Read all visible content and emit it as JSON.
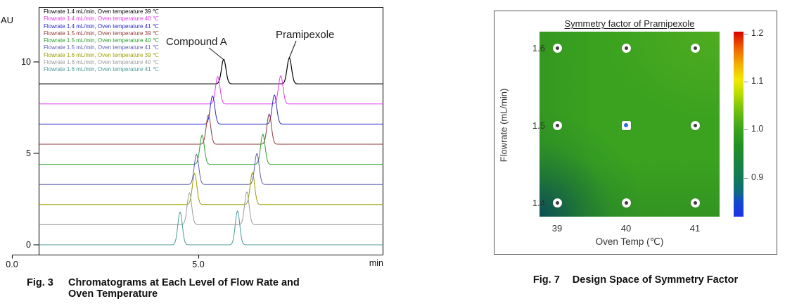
{
  "figure_left": {
    "ylabel": "AU",
    "x_unit": "min",
    "caption": {
      "tag": "Fig. 3",
      "line1": "Chromatograms at Each Level of Flow Rate and",
      "line2": "Oven Temperature"
    }
  },
  "figure_right": {
    "caption": {
      "tag": "Fig. 7",
      "text": "Design Space of Symmetry Factor"
    }
  },
  "chart_data": [
    {
      "type": "line",
      "title": "Chromatograms at Each Level of Flow Rate and Oven Temperature",
      "xlabel": "min",
      "ylabel": "AU",
      "xlim": [
        0,
        10
      ],
      "ylim": [
        -0.6,
        13
      ],
      "x_ticks": [
        {
          "label": "0.0",
          "value": 0
        },
        {
          "label": "5.0",
          "value": 5
        }
      ],
      "y_ticks": [
        {
          "label": "10",
          "value": 10
        },
        {
          "label": "5",
          "value": 5
        },
        {
          "label": "0",
          "value": 0
        }
      ],
      "peak_annotations": [
        {
          "text": "Compound A",
          "points_to": "first peak of top trace"
        },
        {
          "text": "Pramipexole",
          "points_to": "second peak of top trace"
        }
      ],
      "baseline_offset_step_au": 1.1,
      "series": [
        {
          "name": "Flowrate 1.4 mL/min, Oven temperature 39 ℃",
          "color": "#000000",
          "baseline_au": 8.8,
          "peaks": [
            {
              "rt_min": 5.68,
              "height_au": 1.35
            },
            {
              "rt_min": 7.44,
              "height_au": 1.42
            }
          ]
        },
        {
          "name": "Flowrate 1.4 mL/min, Oven temperature 40 ℃",
          "color": "#e837e8",
          "baseline_au": 7.7,
          "peaks": [
            {
              "rt_min": 5.52,
              "height_au": 1.5
            },
            {
              "rt_min": 7.21,
              "height_au": 1.55
            }
          ]
        },
        {
          "name": "Flowrate 1.4 mL/min, Oven temperature 41 ℃",
          "color": "#2828cf",
          "baseline_au": 6.6,
          "peaks": [
            {
              "rt_min": 5.38,
              "height_au": 1.55
            },
            {
              "rt_min": 7.04,
              "height_au": 1.6
            }
          ]
        },
        {
          "name": "Flowrate 1.5 mL/min, Oven temperature 39 ℃",
          "color": "#8f3838",
          "baseline_au": 5.5,
          "peaks": [
            {
              "rt_min": 5.27,
              "height_au": 1.6
            },
            {
              "rt_min": 6.9,
              "height_au": 1.65
            }
          ]
        },
        {
          "name": "Flowrate 1.5 mL/min, Oven temperature 40 ℃",
          "color": "#2ba02b",
          "baseline_au": 4.4,
          "peaks": [
            {
              "rt_min": 5.1,
              "height_au": 1.6
            },
            {
              "rt_min": 6.73,
              "height_au": 1.65
            }
          ]
        },
        {
          "name": "Flowrate 1.5 mL/min, Oven temperature 41 ℃",
          "color": "#5e5eb0",
          "baseline_au": 3.3,
          "peaks": [
            {
              "rt_min": 4.95,
              "height_au": 1.65
            },
            {
              "rt_min": 6.57,
              "height_au": 1.7
            }
          ]
        },
        {
          "name": "Flowrate 1.6 mL/min, Oven temperature 39 ℃",
          "color": "#9c9c00",
          "baseline_au": 2.2,
          "peaks": [
            {
              "rt_min": 4.9,
              "height_au": 1.7
            },
            {
              "rt_min": 6.45,
              "height_au": 1.75
            }
          ]
        },
        {
          "name": "Flowrate 1.6 mL/min, Oven temperature 40 ℃",
          "color": "#9c9c9c",
          "baseline_au": 1.1,
          "peaks": [
            {
              "rt_min": 4.76,
              "height_au": 1.75
            },
            {
              "rt_min": 6.3,
              "height_au": 1.8
            }
          ]
        },
        {
          "name": "Flowrate 1.6 mL/min, Oven temperature 41 ℃",
          "color": "#4a9a9a",
          "baseline_au": 0.0,
          "peaks": [
            {
              "rt_min": 4.51,
              "height_au": 1.8
            },
            {
              "rt_min": 6.05,
              "height_au": 1.85
            }
          ]
        }
      ]
    },
    {
      "type": "heatmap",
      "title": "Symmetry factor of Pramipexole",
      "xlabel": "Oven Temp (℃)",
      "ylabel": "Flowrate (mL/min)",
      "x_ticks": [
        {
          "label": "39",
          "value": 39
        },
        {
          "label": "40",
          "value": 40
        },
        {
          "label": "41",
          "value": 41
        }
      ],
      "y_ticks": [
        {
          "label": "1.6",
          "value": 1.6
        },
        {
          "label": "1.5",
          "value": 1.5
        },
        {
          "label": "1.4",
          "value": 1.4
        }
      ],
      "surface_values_approx": {
        "note": "symmetry factor ≈1.0 (green) across the design space, slightly lower (~0.93, darker teal-green) at the low-flowrate / low-temperature corner",
        "rows_flowrate": [
          1.4,
          1.5,
          1.6
        ],
        "cols_oven_temp": [
          39,
          40,
          41
        ],
        "values": [
          [
            0.93,
            0.97,
            0.98
          ],
          [
            0.99,
            1.0,
            1.0
          ],
          [
            1.0,
            1.0,
            1.01
          ]
        ]
      },
      "design_points": [
        {
          "oven_temp": 39,
          "flowrate": 1.6,
          "marker": "circle"
        },
        {
          "oven_temp": 40,
          "flowrate": 1.6,
          "marker": "circle"
        },
        {
          "oven_temp": 41,
          "flowrate": 1.6,
          "marker": "circle"
        },
        {
          "oven_temp": 39,
          "flowrate": 1.5,
          "marker": "circle"
        },
        {
          "oven_temp": 40,
          "flowrate": 1.5,
          "marker": "square-blue"
        },
        {
          "oven_temp": 41,
          "flowrate": 1.5,
          "marker": "circle"
        },
        {
          "oven_temp": 39,
          "flowrate": 1.4,
          "marker": "circle"
        },
        {
          "oven_temp": 40,
          "flowrate": 1.4,
          "marker": "circle"
        },
        {
          "oven_temp": 41,
          "flowrate": 1.4,
          "marker": "circle"
        }
      ],
      "colorbar": {
        "min": 0.82,
        "max": 1.21,
        "ticks": [
          {
            "label": "1.2",
            "value": 1.2
          },
          {
            "label": "1.1",
            "value": 1.1
          },
          {
            "label": "1.0",
            "value": 1.0
          },
          {
            "label": "0.9",
            "value": 0.9
          }
        ]
      }
    }
  ]
}
